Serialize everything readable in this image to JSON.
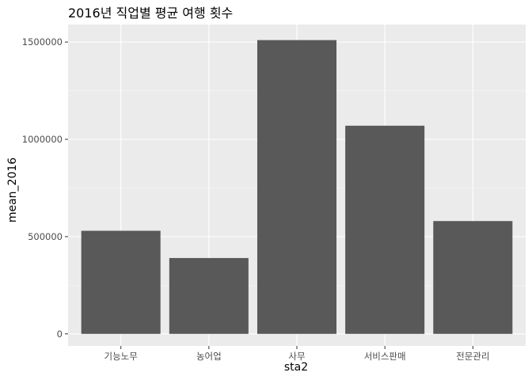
{
  "chart_data": {
    "type": "bar",
    "title": "2016년 직업별 평균 여행 횟수",
    "xlabel": "sta2",
    "ylabel": "mean_2016",
    "categories": [
      "기능노무",
      "농어업",
      "사무",
      "서비스판매",
      "전문관리"
    ],
    "values": [
      530000,
      390000,
      1510000,
      1070000,
      580000
    ],
    "ylim": [
      -62000,
      1590000
    ],
    "yticks": [
      0,
      500000,
      1000000,
      1500000
    ],
    "ytick_labels": [
      "0",
      "500000",
      "1000000",
      "1500000"
    ],
    "grid": true,
    "legend": "none",
    "colors": {
      "bar": "#595959",
      "panel_background": "#ebebeb",
      "grid_major": "#ffffff",
      "grid_minor": "#f5f5f5",
      "tick_text": "#4d4d4d"
    }
  }
}
